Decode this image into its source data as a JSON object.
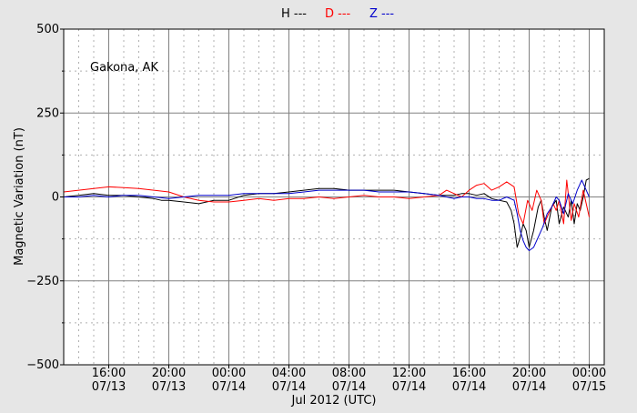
{
  "legend": [
    {
      "label": "H ---",
      "color": "#000000"
    },
    {
      "label": "D ---",
      "color": "#ff0000"
    },
    {
      "label": "Z ---",
      "color": "#0000cc"
    }
  ],
  "chart_data": {
    "type": "line",
    "annotation": "Gakona, AK",
    "xlabel": "Jul 2012 (UTC)",
    "ylabel": "Magnetic Variation (nT)",
    "ylim": [
      -500,
      500
    ],
    "yticks": [
      500,
      250,
      0,
      -250,
      -500
    ],
    "ytick_labels": [
      "500",
      "250",
      "0",
      "−250",
      "−500"
    ],
    "xlim_hours": [
      13.0,
      49.0
    ],
    "xticks": [
      {
        "h": 16,
        "time": "16:00",
        "date": "07/13"
      },
      {
        "h": 20,
        "time": "20:00",
        "date": "07/13"
      },
      {
        "h": 24,
        "time": "00:00",
        "date": "07/14"
      },
      {
        "h": 28,
        "time": "04:00",
        "date": "07/14"
      },
      {
        "h": 32,
        "time": "08:00",
        "date": "07/14"
      },
      {
        "h": 36,
        "time": "12:00",
        "date": "07/14"
      },
      {
        "h": 40,
        "time": "16:00",
        "date": "07/14"
      },
      {
        "h": 44,
        "time": "20:00",
        "date": "07/14"
      },
      {
        "h": 48,
        "time": "00:00",
        "date": "07/15"
      }
    ],
    "grid": true,
    "legend_position": "top-center",
    "series": [
      {
        "name": "H",
        "color": "#000000",
        "x": [
          13.0,
          14.0,
          15.0,
          16.0,
          17.0,
          18.0,
          19.0,
          19.5,
          20.0,
          21.0,
          22.0,
          23.0,
          24.0,
          25.0,
          26.0,
          27.0,
          28.0,
          29.0,
          30.0,
          31.0,
          32.0,
          33.0,
          34.0,
          35.0,
          36.0,
          37.0,
          38.0,
          39.0,
          39.5,
          40.0,
          40.5,
          41.0,
          41.5,
          42.0,
          42.5,
          42.8,
          43.0,
          43.2,
          43.4,
          43.6,
          43.8,
          44.0,
          44.3,
          44.6,
          44.8,
          45.0,
          45.2,
          45.5,
          45.8,
          46.0,
          46.3,
          46.6,
          46.8,
          47.0,
          47.2,
          47.4,
          47.6,
          47.8,
          48.0
        ],
        "y": [
          0,
          5,
          10,
          5,
          5,
          0,
          -5,
          -10,
          -10,
          -15,
          -20,
          -10,
          -10,
          5,
          10,
          10,
          15,
          20,
          25,
          25,
          20,
          20,
          20,
          20,
          15,
          10,
          5,
          5,
          10,
          10,
          5,
          10,
          -5,
          -10,
          -15,
          -40,
          -80,
          -150,
          -120,
          -80,
          -100,
          -150,
          -100,
          -30,
          -10,
          -60,
          -100,
          -30,
          -10,
          -80,
          -30,
          -60,
          -10,
          -80,
          -20,
          -40,
          0,
          50,
          55
        ]
      },
      {
        "name": "D",
        "color": "#ff0000",
        "x": [
          13.0,
          14.0,
          15.0,
          16.0,
          17.0,
          18.0,
          19.0,
          20.0,
          21.0,
          22.0,
          23.0,
          24.0,
          25.0,
          26.0,
          27.0,
          28.0,
          29.0,
          30.0,
          31.0,
          32.0,
          33.0,
          34.0,
          35.0,
          36.0,
          37.0,
          38.0,
          38.5,
          39.0,
          39.5,
          40.0,
          40.5,
          41.0,
          41.5,
          42.0,
          42.5,
          43.0,
          43.3,
          43.6,
          43.9,
          44.2,
          44.5,
          44.8,
          45.0,
          45.3,
          45.6,
          45.8,
          46.0,
          46.3,
          46.5,
          46.8,
          47.0,
          47.3,
          47.6,
          47.8,
          48.0
        ],
        "y": [
          15,
          20,
          25,
          30,
          28,
          25,
          20,
          15,
          0,
          -10,
          -15,
          -15,
          -10,
          -5,
          -10,
          -5,
          -5,
          0,
          -5,
          0,
          5,
          0,
          0,
          -5,
          0,
          5,
          20,
          10,
          0,
          20,
          35,
          40,
          20,
          30,
          45,
          30,
          -50,
          -80,
          -10,
          -40,
          20,
          -10,
          -80,
          -50,
          -20,
          -40,
          -10,
          -80,
          50,
          -70,
          -20,
          -60,
          20,
          -20,
          -60
        ]
      },
      {
        "name": "Z",
        "color": "#0000cc",
        "x": [
          13.0,
          14.0,
          15.0,
          16.0,
          17.0,
          18.0,
          19.0,
          20.0,
          21.0,
          22.0,
          23.0,
          24.0,
          25.0,
          26.0,
          27.0,
          28.0,
          29.0,
          30.0,
          31.0,
          32.0,
          33.0,
          34.0,
          35.0,
          36.0,
          37.0,
          38.0,
          38.5,
          39.0,
          39.5,
          40.0,
          40.5,
          41.0,
          41.5,
          42.0,
          42.5,
          43.0,
          43.2,
          43.4,
          43.6,
          43.8,
          44.0,
          44.3,
          44.6,
          44.9,
          45.2,
          45.5,
          45.8,
          46.0,
          46.3,
          46.6,
          46.9,
          47.2,
          47.5,
          47.8,
          48.0
        ],
        "y": [
          0,
          0,
          5,
          0,
          5,
          5,
          0,
          -5,
          0,
          5,
          5,
          5,
          10,
          10,
          10,
          10,
          15,
          20,
          20,
          20,
          20,
          15,
          15,
          15,
          10,
          5,
          0,
          -5,
          0,
          0,
          -5,
          -5,
          -10,
          -10,
          0,
          -10,
          -50,
          -100,
          -130,
          -150,
          -160,
          -150,
          -120,
          -90,
          -50,
          -30,
          0,
          -10,
          -50,
          10,
          -20,
          20,
          50,
          20,
          0
        ]
      }
    ]
  }
}
